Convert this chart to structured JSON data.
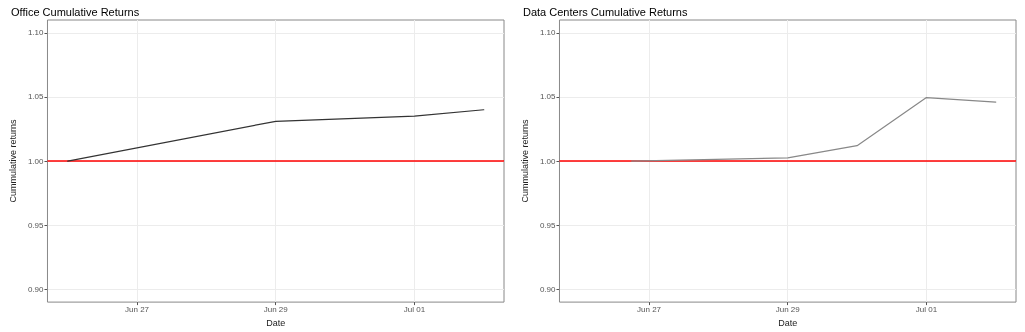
{
  "chart_data": [
    {
      "type": "line",
      "title": "Office Cumulative Returns",
      "xlabel": "Date",
      "ylabel": "Cummulative returns",
      "x": [
        "--06-26",
        "--06-29",
        "--07-01",
        "--07-02"
      ],
      "series": [
        {
          "color": "#333333",
          "values": [
            1.0,
            1.031,
            1.035,
            1.04
          ]
        }
      ],
      "xlim": [
        "--06-25T17:00",
        "--07-02T07:00"
      ],
      "xticks": [
        {
          "value": "--06-27",
          "label": "Jun 27"
        },
        {
          "value": "--06-29",
          "label": "Jun 29"
        },
        {
          "value": "--07-01",
          "label": "Jul 01"
        }
      ],
      "ylim": [
        0.89,
        1.11
      ],
      "yticks": [
        {
          "value": 0.9,
          "label": "0.90"
        },
        {
          "value": 0.95,
          "label": "0.95"
        },
        {
          "value": 1.0,
          "label": "1.00"
        },
        {
          "value": 1.05,
          "label": "1.05"
        },
        {
          "value": 1.1,
          "label": "1.10"
        }
      ],
      "ref_lines": [
        {
          "axis": "y",
          "value": 1.0,
          "color": "#ff0000"
        }
      ],
      "grid": true,
      "marker": "none",
      "line_style": "solid"
    },
    {
      "type": "line",
      "title": "Data Centers Cumulative Returns",
      "xlabel": "Date",
      "ylabel": "Cummulative returns",
      "x": [
        "--06-26T18:00",
        "--06-29",
        "--06-30",
        "--07-01",
        "--07-02"
      ],
      "series": [
        {
          "color": "#888888",
          "values": [
            1.0,
            1.0025,
            1.012,
            1.0495,
            1.046
          ]
        }
      ],
      "xlim": [
        "--06-25T17:00",
        "--07-02T07:00"
      ],
      "xticks": [
        {
          "value": "--06-27",
          "label": "Jun 27"
        },
        {
          "value": "--06-29",
          "label": "Jun 29"
        },
        {
          "value": "--07-01",
          "label": "Jul 01"
        }
      ],
      "ylim": [
        0.89,
        1.11
      ],
      "yticks": [
        {
          "value": 0.9,
          "label": "0.90"
        },
        {
          "value": 0.95,
          "label": "0.95"
        },
        {
          "value": 1.0,
          "label": "1.00"
        },
        {
          "value": 1.05,
          "label": "1.05"
        },
        {
          "value": 1.1,
          "label": "1.10"
        }
      ],
      "ref_lines": [
        {
          "axis": "y",
          "value": 1.0,
          "color": "#ff0000"
        }
      ],
      "grid": true,
      "marker": "none",
      "line_style": "solid"
    }
  ]
}
